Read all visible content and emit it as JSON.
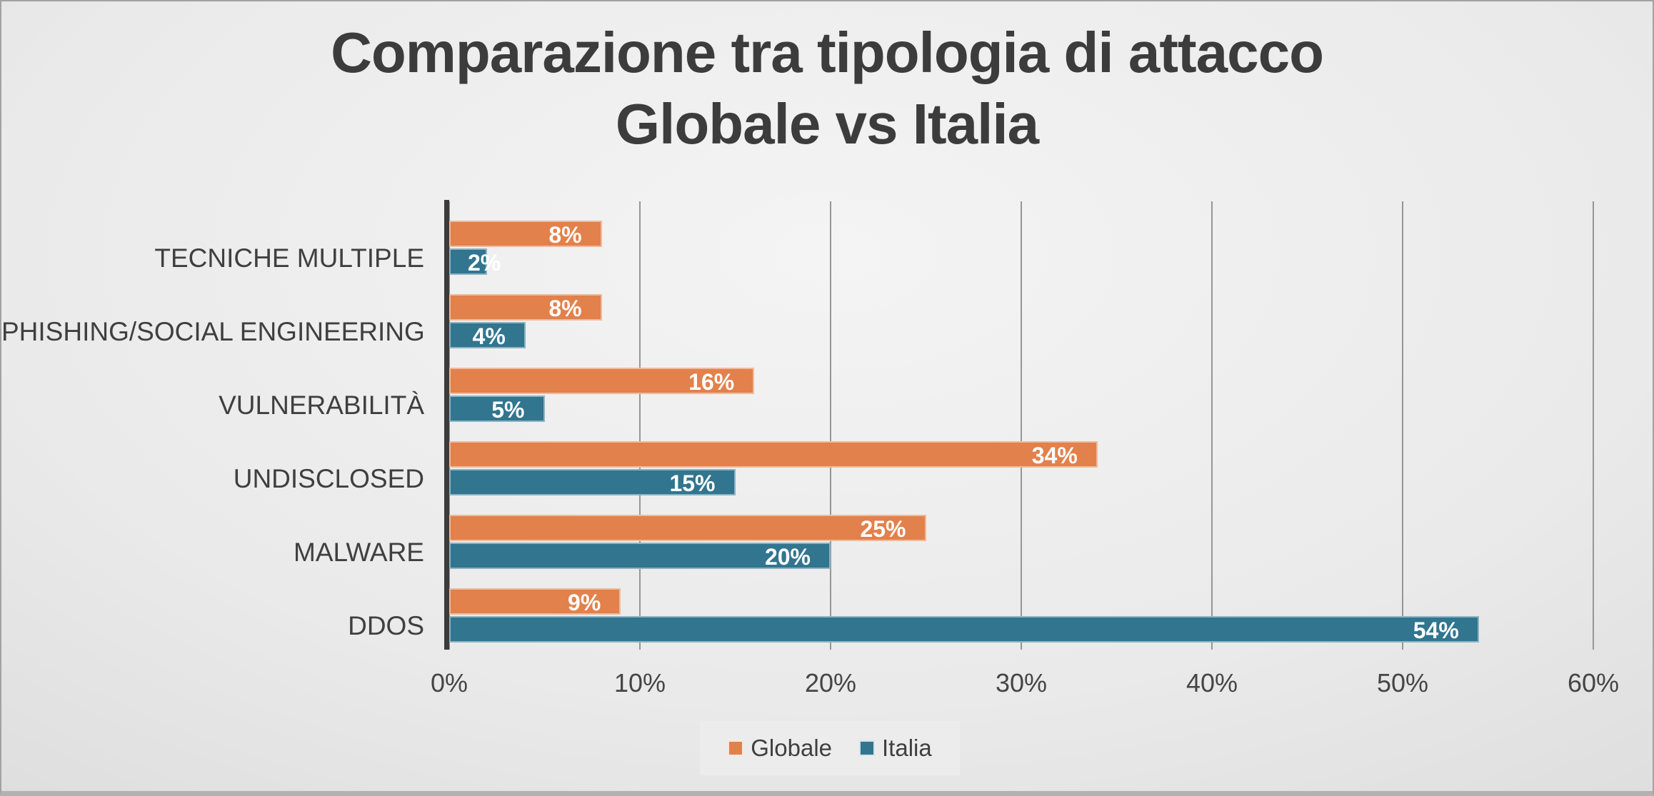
{
  "title": {
    "line1": "Comparazione tra tipologia di attacco",
    "line2": "Globale vs Italia"
  },
  "chart_data": {
    "type": "bar",
    "orientation": "horizontal",
    "title": "Comparazione tra tipologia di attacco Globale vs Italia",
    "categories": [
      "TECNICHE MULTIPLE",
      "PHISHING/SOCIAL ENGINEERING",
      "VULNERABILITÀ",
      "UNDISCLOSED",
      "MALWARE",
      "DDOS"
    ],
    "series": [
      {
        "name": "Globale",
        "color": "#e2814c",
        "values": [
          8,
          8,
          16,
          34,
          25,
          9
        ]
      },
      {
        "name": "Italia",
        "color": "#31758f",
        "values": [
          2,
          4,
          5,
          15,
          20,
          54
        ]
      }
    ],
    "value_label_suffix": "%",
    "value_labels_position": "inside-end",
    "x_ticks": [
      "0%",
      "10%",
      "20%",
      "30%",
      "40%",
      "50%",
      "60%"
    ],
    "xlim": [
      0,
      60
    ],
    "grid": true,
    "legend_position": "bottom"
  },
  "colors": {
    "globale": "#e2814c",
    "italia": "#31758f",
    "text": "#3f3f3f",
    "gridline": "#969696",
    "axis_line": "#3b3b3b",
    "legend_background": "#ececec",
    "value_label_text": "#ffffff"
  }
}
